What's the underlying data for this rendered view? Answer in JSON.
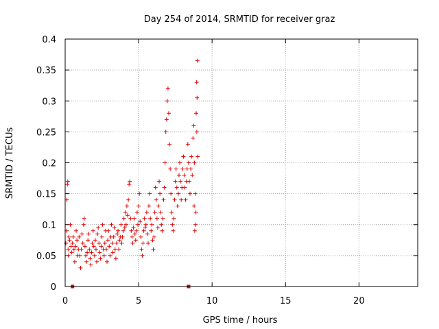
{
  "chart_data": {
    "type": "scatter",
    "title": "Day 254 of 2014, SRMTID for receiver graz",
    "xlabel": "GPS time / hours",
    "ylabel": "SRMTID / TECUs",
    "xlim": [
      0,
      24
    ],
    "ylim": [
      0,
      0.4
    ],
    "grid": true,
    "marker": "+",
    "marker_color": "#e00000",
    "x_ticks": [
      {
        "value": 0,
        "label": "0"
      },
      {
        "value": 5,
        "label": "5"
      },
      {
        "value": 10,
        "label": "10"
      },
      {
        "value": 15,
        "label": "15"
      },
      {
        "value": 20,
        "label": "20"
      }
    ],
    "y_ticks": [
      {
        "value": 0,
        "label": "0"
      },
      {
        "value": 0.05,
        "label": "0.05"
      },
      {
        "value": 0.1,
        "label": "0.1"
      },
      {
        "value": 0.15,
        "label": "0.15"
      },
      {
        "value": 0.2,
        "label": "0.2"
      },
      {
        "value": 0.25,
        "label": "0.25"
      },
      {
        "value": 0.3,
        "label": "0.3"
      },
      {
        "value": 0.35,
        "label": "0.35"
      },
      {
        "value": 0.4,
        "label": "0.4"
      }
    ],
    "baseline_markers": [
      {
        "x": 0.5,
        "y": 0
      },
      {
        "x": 8.4,
        "y": 0
      }
    ],
    "series": [
      {
        "name": "SRMTID",
        "points": [
          [
            0.05,
            0.07
          ],
          [
            0.1,
            0.09
          ],
          [
            0.12,
            0.14
          ],
          [
            0.15,
            0.165
          ],
          [
            0.18,
            0.17
          ],
          [
            0.2,
            0.06
          ],
          [
            0.22,
            0.05
          ],
          [
            0.25,
            0.08
          ],
          [
            0.3,
            0.075
          ],
          [
            0.35,
            0.1
          ],
          [
            0.4,
            0.065
          ],
          [
            0.45,
            0.055
          ],
          [
            0.5,
            0.07
          ],
          [
            0.55,
            0.08
          ],
          [
            0.6,
            0.06
          ],
          [
            0.65,
            0.04
          ],
          [
            0.7,
            0.065
          ],
          [
            0.75,
            0.09
          ],
          [
            0.8,
            0.075
          ],
          [
            0.85,
            0.05
          ],
          [
            0.9,
            0.06
          ],
          [
            0.95,
            0.08
          ],
          [
            1.0,
            0.05
          ],
          [
            1.05,
            0.03
          ],
          [
            1.1,
            0.06
          ],
          [
            1.15,
            0.085
          ],
          [
            1.2,
            0.07
          ],
          [
            1.25,
            0.1
          ],
          [
            1.3,
            0.11
          ],
          [
            1.35,
            0.065
          ],
          [
            1.4,
            0.05
          ],
          [
            1.45,
            0.04
          ],
          [
            1.5,
            0.055
          ],
          [
            1.55,
            0.075
          ],
          [
            1.6,
            0.085
          ],
          [
            1.65,
            0.06
          ],
          [
            1.7,
            0.045
          ],
          [
            1.75,
            0.035
          ],
          [
            1.8,
            0.055
          ],
          [
            1.85,
            0.07
          ],
          [
            1.9,
            0.09
          ],
          [
            1.95,
            0.065
          ],
          [
            2.0,
            0.05
          ],
          [
            2.05,
            0.075
          ],
          [
            2.1,
            0.06
          ],
          [
            2.15,
            0.04
          ],
          [
            2.2,
            0.085
          ],
          [
            2.25,
            0.095
          ],
          [
            2.3,
            0.07
          ],
          [
            2.35,
            0.055
          ],
          [
            2.4,
            0.045
          ],
          [
            2.45,
            0.065
          ],
          [
            2.5,
            0.08
          ],
          [
            2.55,
            0.1
          ],
          [
            2.6,
            0.06
          ],
          [
            2.65,
            0.05
          ],
          [
            2.7,
            0.07
          ],
          [
            2.75,
            0.09
          ],
          [
            2.8,
            0.06
          ],
          [
            2.85,
            0.04
          ],
          [
            2.9,
            0.075
          ],
          [
            2.95,
            0.09
          ],
          [
            3.0,
            0.065
          ],
          [
            3.05,
            0.05
          ],
          [
            3.1,
            0.08
          ],
          [
            3.15,
            0.1
          ],
          [
            3.2,
            0.07
          ],
          [
            3.25,
            0.055
          ],
          [
            3.3,
            0.08
          ],
          [
            3.35,
            0.095
          ],
          [
            3.4,
            0.06
          ],
          [
            3.45,
            0.045
          ],
          [
            3.5,
            0.07
          ],
          [
            3.55,
            0.085
          ],
          [
            3.6,
            0.09
          ],
          [
            3.65,
            0.06
          ],
          [
            3.7,
            0.075
          ],
          [
            3.75,
            0.08
          ],
          [
            3.8,
            0.1
          ],
          [
            3.85,
            0.07
          ],
          [
            3.9,
            0.08
          ],
          [
            3.95,
            0.09
          ],
          [
            4.0,
            0.11
          ],
          [
            4.05,
            0.095
          ],
          [
            4.1,
            0.12
          ],
          [
            4.15,
            0.1
          ],
          [
            4.2,
            0.13
          ],
          [
            4.25,
            0.115
          ],
          [
            4.3,
            0.14
          ],
          [
            4.35,
            0.165
          ],
          [
            4.4,
            0.17
          ],
          [
            4.45,
            0.11
          ],
          [
            4.5,
            0.09
          ],
          [
            4.55,
            0.08
          ],
          [
            4.6,
            0.07
          ],
          [
            4.65,
            0.095
          ],
          [
            4.7,
            0.11
          ],
          [
            4.75,
            0.085
          ],
          [
            4.8,
            0.075
          ],
          [
            4.85,
            0.09
          ],
          [
            4.9,
            0.12
          ],
          [
            4.95,
            0.1
          ],
          [
            5.0,
            0.13
          ],
          [
            5.05,
            0.15
          ],
          [
            5.1,
            0.105
          ],
          [
            5.15,
            0.08
          ],
          [
            5.2,
            0.06
          ],
          [
            5.25,
            0.05
          ],
          [
            5.3,
            0.07
          ],
          [
            5.35,
            0.09
          ],
          [
            5.4,
            0.11
          ],
          [
            5.45,
            0.095
          ],
          [
            5.5,
            0.1
          ],
          [
            5.55,
            0.12
          ],
          [
            5.6,
            0.085
          ],
          [
            5.65,
            0.07
          ],
          [
            5.7,
            0.13
          ],
          [
            5.75,
            0.15
          ],
          [
            5.8,
            0.11
          ],
          [
            5.85,
            0.09
          ],
          [
            5.9,
            0.1
          ],
          [
            5.95,
            0.075
          ],
          [
            6.0,
            0.06
          ],
          [
            6.05,
            0.08
          ],
          [
            6.1,
            0.12
          ],
          [
            6.15,
            0.16
          ],
          [
            6.2,
            0.14
          ],
          [
            6.25,
            0.11
          ],
          [
            6.3,
            0.095
          ],
          [
            6.35,
            0.13
          ],
          [
            6.4,
            0.17
          ],
          [
            6.45,
            0.15
          ],
          [
            6.5,
            0.12
          ],
          [
            6.55,
            0.1
          ],
          [
            6.6,
            0.09
          ],
          [
            6.65,
            0.11
          ],
          [
            6.7,
            0.14
          ],
          [
            6.75,
            0.16
          ],
          [
            6.8,
            0.2
          ],
          [
            6.85,
            0.25
          ],
          [
            6.9,
            0.27
          ],
          [
            6.95,
            0.3
          ],
          [
            7.0,
            0.32
          ],
          [
            7.05,
            0.28
          ],
          [
            7.1,
            0.23
          ],
          [
            7.15,
            0.19
          ],
          [
            7.2,
            0.15
          ],
          [
            7.25,
            0.12
          ],
          [
            7.3,
            0.1
          ],
          [
            7.35,
            0.09
          ],
          [
            7.4,
            0.11
          ],
          [
            7.45,
            0.14
          ],
          [
            7.5,
            0.17
          ],
          [
            7.55,
            0.19
          ],
          [
            7.6,
            0.16
          ],
          [
            7.65,
            0.13
          ],
          [
            7.7,
            0.15
          ],
          [
            7.75,
            0.18
          ],
          [
            7.8,
            0.2
          ],
          [
            7.85,
            0.17
          ],
          [
            7.9,
            0.14
          ],
          [
            7.95,
            0.16
          ],
          [
            8.0,
            0.19
          ],
          [
            8.05,
            0.21
          ],
          [
            8.1,
            0.18
          ],
          [
            8.15,
            0.16
          ],
          [
            8.2,
            0.14
          ],
          [
            8.25,
            0.17
          ],
          [
            8.3,
            0.19
          ],
          [
            8.35,
            0.23
          ],
          [
            8.4,
            0.2
          ],
          [
            8.45,
            0.17
          ],
          [
            8.5,
            0.15
          ],
          [
            8.55,
            0.19
          ],
          [
            8.6,
            0.21
          ],
          [
            8.65,
            0.18
          ],
          [
            8.7,
            0.24
          ],
          [
            8.75,
            0.26
          ],
          [
            8.8,
            0.2
          ],
          [
            8.85,
            0.15
          ],
          [
            8.9,
            0.12
          ],
          [
            8.95,
            0.33
          ],
          [
            9.0,
            0.365
          ],
          [
            8.98,
            0.305
          ],
          [
            8.92,
            0.28
          ],
          [
            8.96,
            0.25
          ],
          [
            9.02,
            0.21
          ],
          [
            8.88,
            0.1
          ],
          [
            8.82,
            0.09
          ],
          [
            8.78,
            0.13
          ]
        ]
      }
    ]
  }
}
